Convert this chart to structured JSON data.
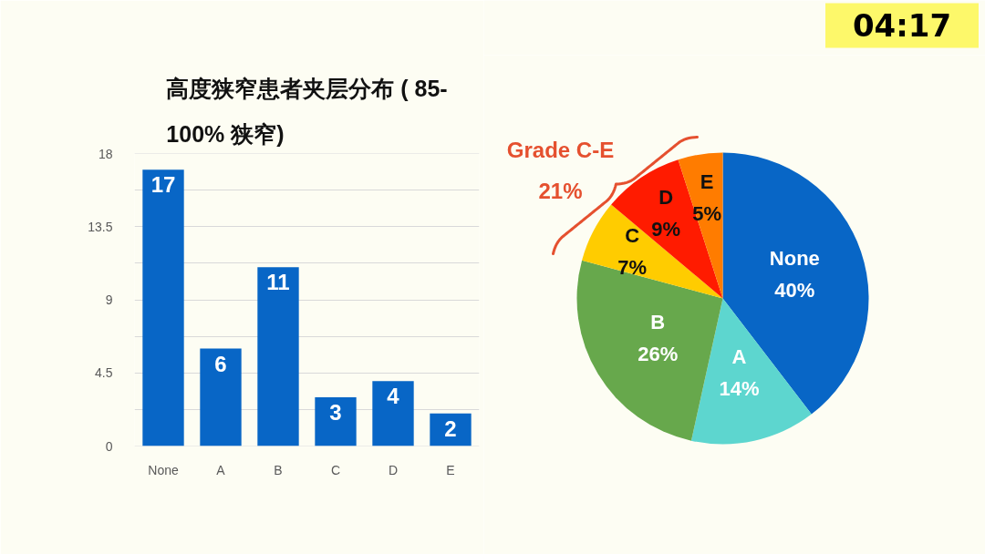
{
  "chart_data": [
    {
      "type": "bar",
      "title": "高度狭窄患者夹层分布 ( 85-\n100% 狭窄)",
      "categories": [
        "None",
        "A",
        "B",
        "C",
        "D",
        "E"
      ],
      "values": [
        17,
        6,
        11,
        3,
        4,
        2
      ],
      "color": "#0866c6",
      "ylim": [
        0,
        18
      ],
      "yticks": [
        0,
        {
          "value": 2.25,
          "label": null
        },
        4.5,
        {
          "value": 6.75,
          "label": null
        },
        9,
        {
          "value": 11.25,
          "label": null
        },
        13.5,
        {
          "value": 15.75,
          "label": null
        },
        18
      ],
      "grid": "y",
      "data_labels": true
    },
    {
      "type": "pie",
      "categories": [
        "None",
        "A",
        "B",
        "C",
        "D",
        "E"
      ],
      "values": [
        40,
        14,
        26,
        7,
        9,
        5
      ],
      "value_labels": [
        "40%",
        "14%",
        "26%",
        "7%",
        "9%",
        "5%"
      ],
      "colors": [
        "#0866c6",
        "#5dd6cf",
        "#67a84c",
        "#ffcc00",
        "#ff1b00",
        "#ff7c00"
      ],
      "annotations": [
        "Grade C-E\n21%"
      ]
    },
    {
      "type": "other",
      "annotations": [
        "04:17"
      ]
    }
  ]
}
